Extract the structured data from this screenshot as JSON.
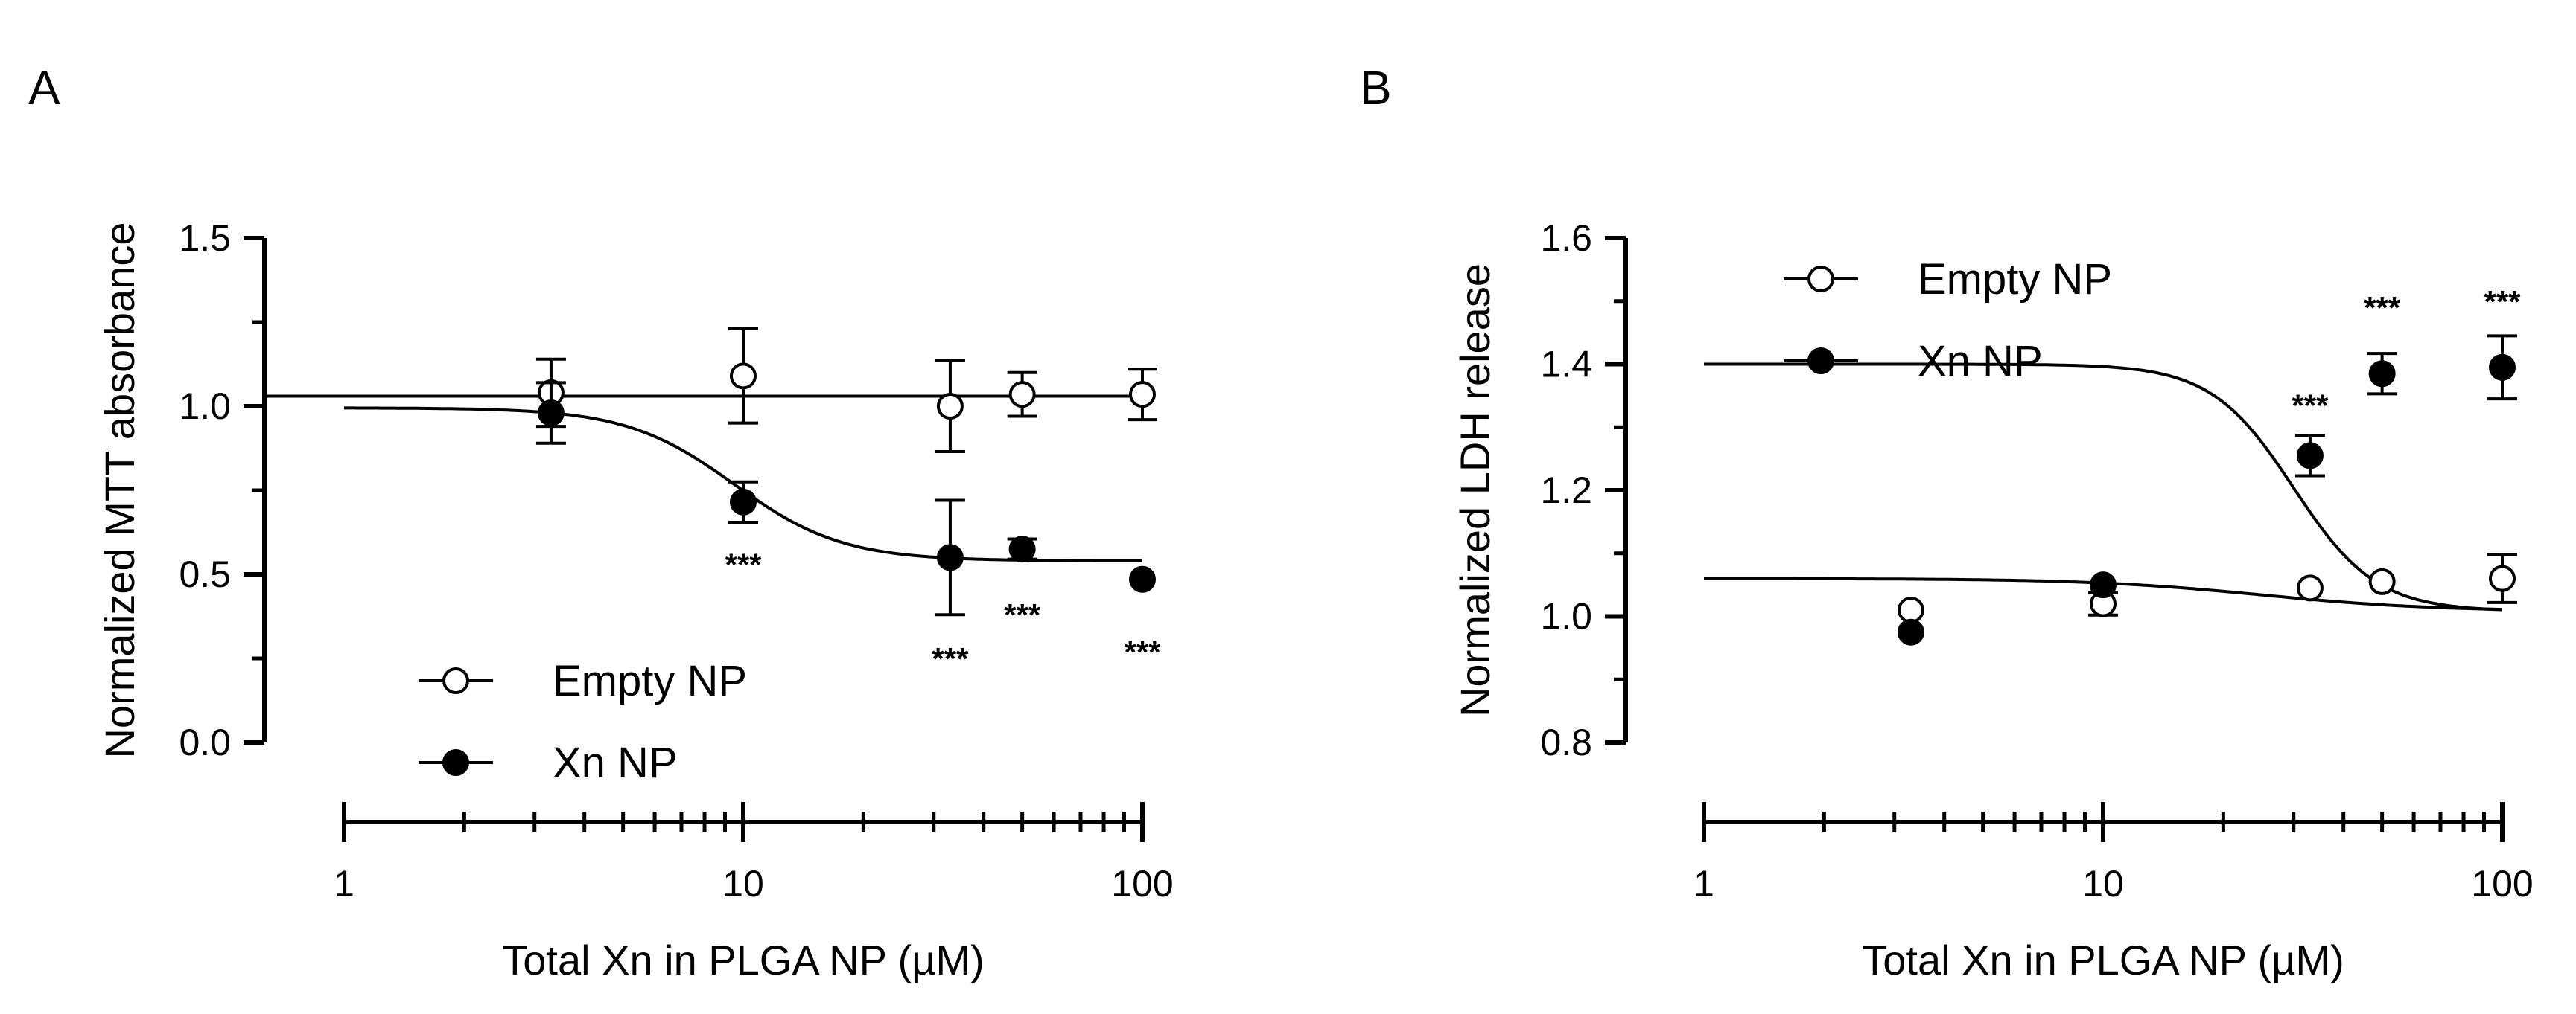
{
  "chart_data": [
    {
      "panel": "A",
      "type": "scatter",
      "title": "",
      "xlabel": "Total Xn in PLGA NP (µM)",
      "ylabel": "Normalized MTT absorbance",
      "xscale": "log",
      "xlim": [
        1,
        100
      ],
      "ylim": [
        0,
        1.5
      ],
      "x_tick_labels": [
        "1",
        "10",
        "100"
      ],
      "y_tick_labels": [
        "0.0",
        "0.5",
        "1.0",
        "1.5"
      ],
      "legend": {
        "placement": "bottom-left",
        "entries": [
          "Empty NP",
          "Xn NP"
        ]
      },
      "series": [
        {
          "name": "Empty NP",
          "marker": "open-circle",
          "x": [
            3.3,
            10,
            33,
            50,
            100
          ],
          "y": [
            1.04,
            1.09,
            1.0,
            1.035,
            1.035
          ],
          "yerr": [
            0.1,
            0.14,
            0.135,
            0.065,
            0.075
          ],
          "fit": {
            "model": "constant",
            "value": 1.03
          }
        },
        {
          "name": "Xn NP",
          "marker": "filled-circle",
          "x": [
            3.3,
            10,
            33,
            50,
            100
          ],
          "y": [
            0.98,
            0.715,
            0.55,
            0.575,
            0.485
          ],
          "yerr": [
            0.09,
            0.06,
            0.17,
            0.03,
            0.0
          ],
          "fit": {
            "model": "sigmoid-log",
            "top": 0.995,
            "bottom": 0.54,
            "ec50": 9.5,
            "hill": 3.2
          }
        }
      ],
      "annotations": [
        {
          "text": "***",
          "x": 10,
          "y": 0.53,
          "series": "Xn NP"
        },
        {
          "text": "***",
          "x": 33,
          "y": 0.25,
          "series": "Xn NP"
        },
        {
          "text": "***",
          "x": 50,
          "y": 0.38,
          "series": "Xn NP"
        },
        {
          "text": "***",
          "x": 100,
          "y": 0.27,
          "series": "Xn NP"
        }
      ]
    },
    {
      "panel": "B",
      "type": "scatter",
      "title": "",
      "xlabel": "Total Xn in PLGA NP (µM)",
      "ylabel": "Normalized  LDH release",
      "xscale": "log",
      "xlim": [
        1,
        100
      ],
      "ylim": [
        0.8,
        1.6
      ],
      "x_tick_labels": [
        "1",
        "10",
        "100"
      ],
      "y_tick_labels": [
        "0.8",
        "1.0",
        "1.2",
        "1.4",
        "1.6"
      ],
      "legend": {
        "placement": "top-left",
        "entries": [
          "Empty NP",
          "Xn NP"
        ]
      },
      "series": [
        {
          "name": "Empty NP",
          "marker": "open-circle",
          "x": [
            3.3,
            10,
            33,
            50,
            100
          ],
          "y": [
            1.01,
            1.02,
            1.045,
            1.055,
            1.06
          ],
          "yerr": [
            0.0,
            0.018,
            0.0,
            0.0,
            0.038
          ],
          "fit": {
            "model": "sigmoid-log",
            "top": 1.06,
            "bottom": 1.008,
            "ec50": 25,
            "hill": 2.0
          }
        },
        {
          "name": "Xn NP",
          "marker": "filled-circle",
          "x": [
            3.3,
            10,
            33,
            50,
            100
          ],
          "y": [
            0.975,
            1.05,
            1.255,
            1.385,
            1.395
          ],
          "yerr": [
            0.0,
            0.0,
            0.032,
            0.032,
            0.05
          ],
          "fit": {
            "model": "sigmoid-log",
            "top": 1.4,
            "bottom": 1.008,
            "ec50": 30,
            "hill": 4.2
          }
        }
      ],
      "annotations": [
        {
          "text": "***",
          "x": 33,
          "y": 1.335,
          "series": "Xn NP"
        },
        {
          "text": "***",
          "x": 50,
          "y": 1.49,
          "series": "Xn NP"
        },
        {
          "text": "***",
          "x": 100,
          "y": 1.5,
          "series": "Xn NP"
        }
      ]
    }
  ]
}
